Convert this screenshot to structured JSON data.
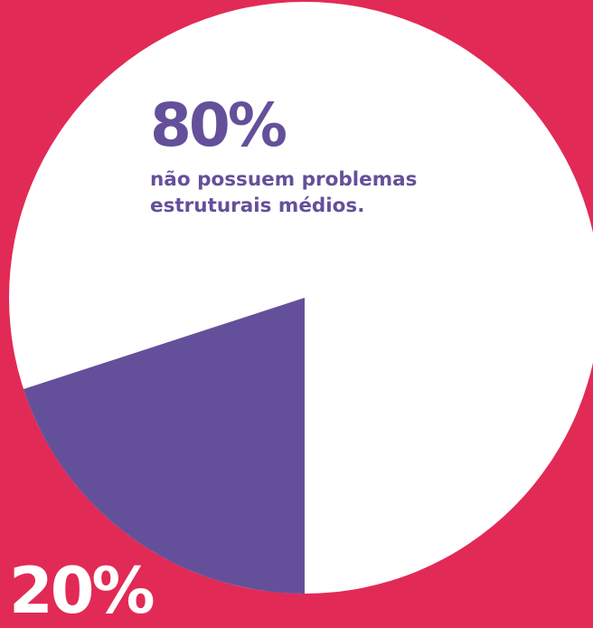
{
  "chart_data": {
    "type": "pie",
    "slices": [
      {
        "value": 80,
        "label_value": "80%",
        "label_lines": [
          "não possuem problemas",
          "estruturais médios."
        ],
        "color": "#ffffff"
      },
      {
        "value": 20,
        "label_value": "20%",
        "color": "#64509a"
      }
    ]
  },
  "colors": {
    "background": "#e22a56",
    "accent_purple": "#64509a",
    "white": "#ffffff"
  }
}
